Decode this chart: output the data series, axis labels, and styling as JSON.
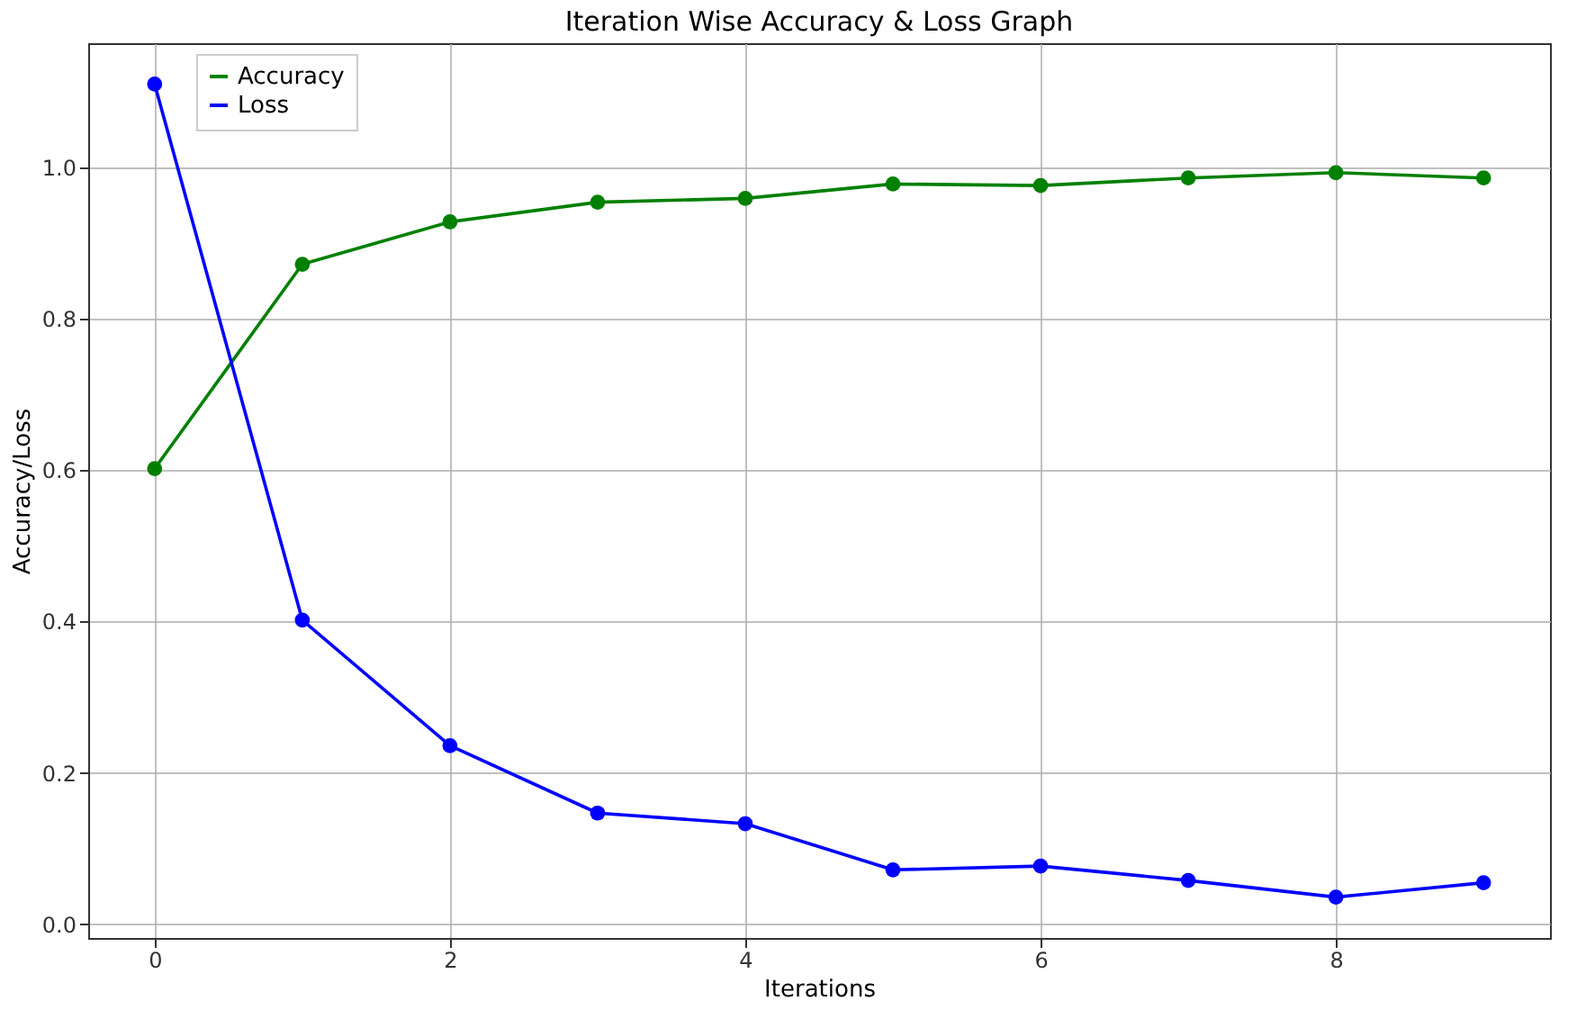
{
  "chart_data": {
    "type": "line",
    "title": "Iteration Wise Accuracy & Loss Graph",
    "xlabel": "Iterations",
    "ylabel": "Accuracy/Loss",
    "x": [
      0,
      1,
      2,
      3,
      4,
      5,
      6,
      7,
      8,
      9
    ],
    "series": [
      {
        "name": "Accuracy",
        "color": "#008000",
        "values": [
          0.602,
          0.872,
          0.928,
          0.954,
          0.959,
          0.978,
          0.976,
          0.986,
          0.993,
          0.986
        ]
      },
      {
        "name": "Loss",
        "color": "#0000ff",
        "values": [
          1.11,
          0.402,
          0.236,
          0.147,
          0.133,
          0.072,
          0.077,
          0.058,
          0.036,
          0.055
        ]
      }
    ],
    "xlim": [
      -0.45,
      9.45
    ],
    "xticks": [
      0,
      2,
      4,
      6,
      8
    ],
    "ylim": [
      -0.018,
      1.164
    ],
    "yticks": [
      {
        "value": 0,
        "label": "0.0"
      },
      0.2,
      0.4,
      0.6,
      0.8,
      {
        "value": 1,
        "label": "1.0"
      }
    ],
    "grid": true,
    "legend": "top left",
    "marker": "circle",
    "line_style": "solid"
  }
}
